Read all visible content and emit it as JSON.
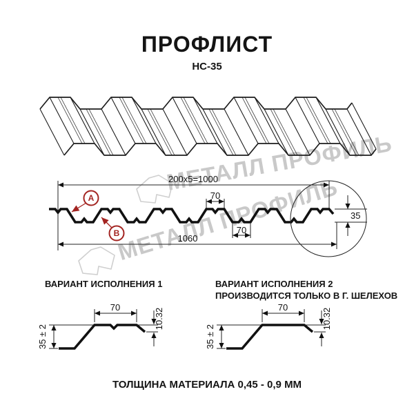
{
  "header": {
    "title": "ПРОФЛИСТ",
    "subtitle": "НС-35"
  },
  "watermark": {
    "brand": "МЕТАЛЛ ПРОФИЛЬ"
  },
  "cross_section": {
    "dim_top_total": "200x5=1000",
    "dim_rib_top_width": "70",
    "dim_rib_bottom_width": "70",
    "dim_overall_width": "1060",
    "dim_height": "35",
    "callout_a": "А",
    "callout_b": "В"
  },
  "variants": {
    "v1": {
      "title": "ВАРИАНТ ИСПОЛНЕНИЯ 1",
      "dim_top_width": "70",
      "dim_lip_height": "10.32",
      "dim_height": "35 ± 2"
    },
    "v2": {
      "title": "ВАРИАНТ ИСПОЛНЕНИЯ 2",
      "subtitle": "ПРОИЗВОДИТСЯ ТОЛЬКО В Г. ШЕЛЕХОВ",
      "dim_top_width": "70",
      "dim_lip_height": "10.32",
      "dim_height": "35 ± 2"
    }
  },
  "footer": {
    "note": "ТОЛЩИНА МАТЕРИАЛА 0,45 - 0,9 ММ"
  },
  "colors": {
    "line": "#1c1c1c",
    "callout_red": "#a32421",
    "watermark": "#c9c9c9"
  }
}
